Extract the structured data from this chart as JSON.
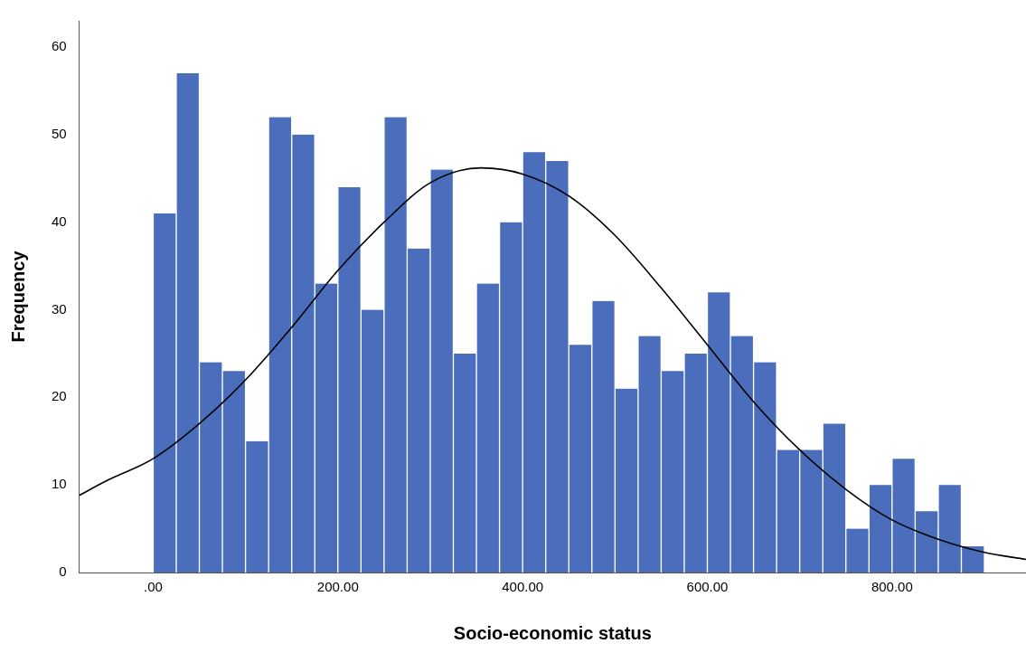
{
  "chart_data": {
    "type": "histogram",
    "xlabel": "Socio-economic status",
    "ylabel": "Frequency",
    "bins": [
      0,
      25,
      50,
      75,
      100,
      125,
      150,
      175,
      200,
      225,
      250,
      275,
      300,
      325,
      350,
      375,
      400,
      425,
      450,
      475,
      500,
      525,
      550,
      575,
      600,
      625,
      650,
      675,
      700,
      725,
      750,
      775,
      800,
      825,
      850,
      875,
      900
    ],
    "series": [
      {
        "color": "#4a6ebb",
        "values": [
          41,
          57,
          24,
          23,
          15,
          52,
          50,
          33,
          44,
          30,
          52,
          37,
          46,
          25,
          33,
          40,
          48,
          47,
          26,
          31,
          21,
          27,
          23,
          25,
          32,
          27,
          24,
          14,
          14,
          17,
          5,
          10,
          13,
          7,
          10,
          3
        ]
      },
      {
        "type": "line",
        "color": "#000000",
        "x": [
          -80,
          -50,
          0,
          50,
          100,
          150,
          200,
          250,
          300,
          355,
          400,
          450,
          500,
          550,
          600,
          650,
          700,
          750,
          800,
          850,
          900,
          945
        ],
        "values": [
          8.8,
          10.5,
          13,
          17,
          22,
          28,
          34.5,
          40,
          44.5,
          46.2,
          45.5,
          43,
          38.5,
          32.5,
          26,
          19.5,
          14,
          9.5,
          6,
          3.8,
          2.3,
          1.5
        ]
      }
    ],
    "xlim": [
      -80,
      945
    ],
    "xticks": [
      {
        "value": 0,
        "label": ".00"
      },
      {
        "value": 200,
        "label": "200.00"
      },
      {
        "value": 400,
        "label": "400.00"
      },
      {
        "value": 600,
        "label": "600.00"
      },
      {
        "value": 800,
        "label": "800.00"
      }
    ],
    "ylim": [
      0,
      63
    ],
    "yticks": [
      0,
      10,
      20,
      30,
      40,
      50,
      60
    ],
    "grid": false,
    "legend": false,
    "marker": "none",
    "line_style": "solid"
  }
}
